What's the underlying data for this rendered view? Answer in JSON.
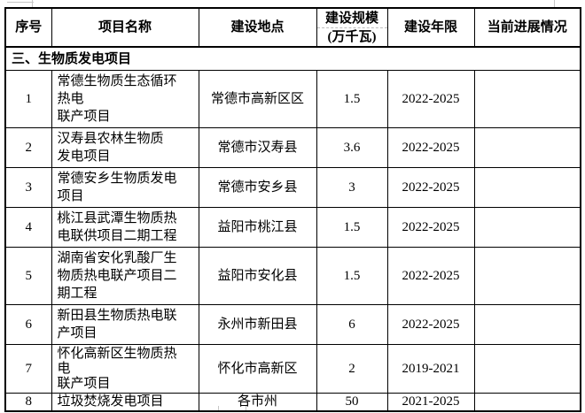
{
  "header": {
    "col_index": "序号",
    "col_name": "项目名称",
    "col_location": "建设地点",
    "col_scale_line1": "建设规模",
    "col_scale_line2": "(万千瓦)",
    "col_years": "建设年限",
    "col_progress": "当前进展情况"
  },
  "section_title": "三、生物质发电项目",
  "rows": [
    {
      "index": "1",
      "name": "常德生物质生态循环\n热电\n联产项目",
      "location": "常德市高新区区",
      "scale": "1.5",
      "years": "2022-2025",
      "progress": ""
    },
    {
      "index": "2",
      "name": "汉寿县农林生物质\n发电项目",
      "location": "常德市汉寿县",
      "scale": "3.6",
      "years": "2022-2025",
      "progress": ""
    },
    {
      "index": "3",
      "name": "常德安乡生物质发电\n项目",
      "location": "常德市安乡县",
      "scale": "3",
      "years": "2022-2025",
      "progress": ""
    },
    {
      "index": "4",
      "name": "桃江县武潭生物质热\n电联供项目二期工程",
      "location": "益阳市桃江县",
      "scale": "1.5",
      "years": "2022-2025",
      "progress": ""
    },
    {
      "index": "5",
      "name": "湖南省安化乳酸厂生\n物质热电联产项目二\n期工程",
      "location": "益阳市安化县",
      "scale": "1.5",
      "years": "2022-2025",
      "progress": ""
    },
    {
      "index": "6",
      "name": "新田县生物质热电联\n产项目",
      "location": "永州市新田县",
      "scale": "6",
      "years": "2022-2025",
      "progress": ""
    },
    {
      "index": "7",
      "name": "怀化高新区生物质热\n电\n联产项目",
      "location": "怀化市高新区",
      "scale": "2",
      "years": "2019-2021",
      "progress": ""
    },
    {
      "index": "8",
      "name": "垃圾焚烧发电项目",
      "location": "各市州",
      "scale": "50",
      "years": "2021-2025",
      "progress": ""
    }
  ],
  "colors": {
    "border": "#000000",
    "dashed_divider": "#bdbdbd",
    "background": "#ffffff",
    "text": "#000000"
  }
}
